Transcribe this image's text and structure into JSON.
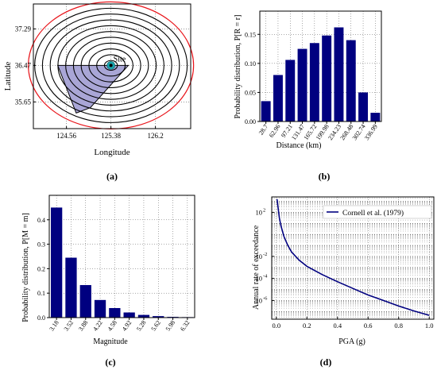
{
  "chart_data": [
    {
      "type": "scatter",
      "panel_label": "(a)",
      "xlabel": "Longitude",
      "ylabel": "Latitude",
      "x_ticks": [
        "124.56",
        "125.38",
        "126.2"
      ],
      "y_ticks": [
        "37.29",
        "36.47",
        "35.65"
      ],
      "x_tick_values": [
        124.56,
        125.38,
        126.2
      ],
      "y_tick_values": [
        37.29,
        36.47,
        35.65
      ],
      "xlim": [
        123.95,
        126.85
      ],
      "ylim": [
        35.05,
        37.85
      ],
      "site": {
        "label": "Site",
        "lon": 125.38,
        "lat": 36.47
      },
      "source_zone": [
        [
          124.4,
          36.47
        ],
        [
          125.7,
          36.47
        ],
        [
          125.0,
          35.52
        ],
        [
          124.74,
          35.4
        ]
      ],
      "site_distance_rings_km": [
        28.7,
        62.96,
        97.21,
        131.47,
        165.72,
        199.98,
        234.23,
        268.48,
        302.74,
        336.99
      ],
      "boundary_color": "#e8151b",
      "zone_color": "#a9a6d6",
      "ring_color": "#000000",
      "site_color": "#17a3ad"
    },
    {
      "type": "bar",
      "panel_label": "(b)",
      "xlabel": "Distance (km)",
      "ylabel": "Probability distribution, P[R = r]",
      "categories": [
        "28.7",
        "62.96",
        "97.21",
        "131.47",
        "165.72",
        "199.98",
        "234.23",
        "268.48",
        "302.74",
        "336.99"
      ],
      "values": [
        0.035,
        0.08,
        0.106,
        0.125,
        0.135,
        0.148,
        0.162,
        0.14,
        0.05,
        0.015
      ],
      "ylim": [
        0,
        0.19
      ],
      "y_ticks": [
        "0.00",
        "0.05",
        "0.10",
        "0.15"
      ],
      "y_tick_values": [
        0,
        0.05,
        0.1,
        0.15
      ],
      "grid": true,
      "color": "#000080"
    },
    {
      "type": "bar",
      "panel_label": "(c)",
      "xlabel": "Magnitude",
      "ylabel": "Probability distribution, P[M = m]",
      "categories": [
        "3.18",
        "3.52",
        "3.88",
        "4.22",
        "4.58",
        "4.92",
        "5.28",
        "5.62",
        "5.98",
        "6.32"
      ],
      "values": [
        0.45,
        0.245,
        0.133,
        0.072,
        0.039,
        0.021,
        0.011,
        0.006,
        0.003,
        0.002
      ],
      "ylim": [
        0,
        0.5
      ],
      "y_ticks": [
        "0.0",
        "0.1",
        "0.2",
        "0.3",
        "0.4"
      ],
      "y_tick_values": [
        0,
        0.1,
        0.2,
        0.3,
        0.4
      ],
      "grid": true,
      "color": "#000080"
    },
    {
      "type": "line",
      "panel_label": "(d)",
      "xlabel": "PGA (g)",
      "ylabel": "Annual rate of exceedance",
      "y_scale": "log",
      "xlim": [
        -0.03,
        1.03
      ],
      "ylim_exponent": [
        -7.7,
        3.4
      ],
      "x_ticks": [
        "0.0",
        "0.2",
        "0.4",
        "0.6",
        "0.8",
        "1.0"
      ],
      "x_tick_values": [
        0,
        0.2,
        0.4,
        0.6,
        0.8,
        1.0
      ],
      "y_ticks": [
        "10",
        "10",
        "10",
        "10"
      ],
      "y_tick_exponents": [
        "2",
        "-2",
        "-4",
        "-6"
      ],
      "y_tick_values": [
        2,
        -2,
        -4,
        -6
      ],
      "grid": true,
      "legend_position": "top-right",
      "series": [
        {
          "name": "Cornell et al. (1979)",
          "color": "#000080",
          "x": [
            0.005,
            0.01,
            0.02,
            0.03,
            0.05,
            0.075,
            0.1,
            0.15,
            0.2,
            0.3,
            0.4,
            0.5,
            0.6,
            0.7,
            0.8,
            0.9,
            1.0
          ],
          "log10_y": [
            3.2,
            2.6,
            1.5,
            0.8,
            -0.2,
            -1.0,
            -1.6,
            -2.35,
            -2.9,
            -3.65,
            -4.3,
            -4.9,
            -5.5,
            -6.0,
            -6.5,
            -6.95,
            -7.35
          ]
        }
      ]
    }
  ]
}
